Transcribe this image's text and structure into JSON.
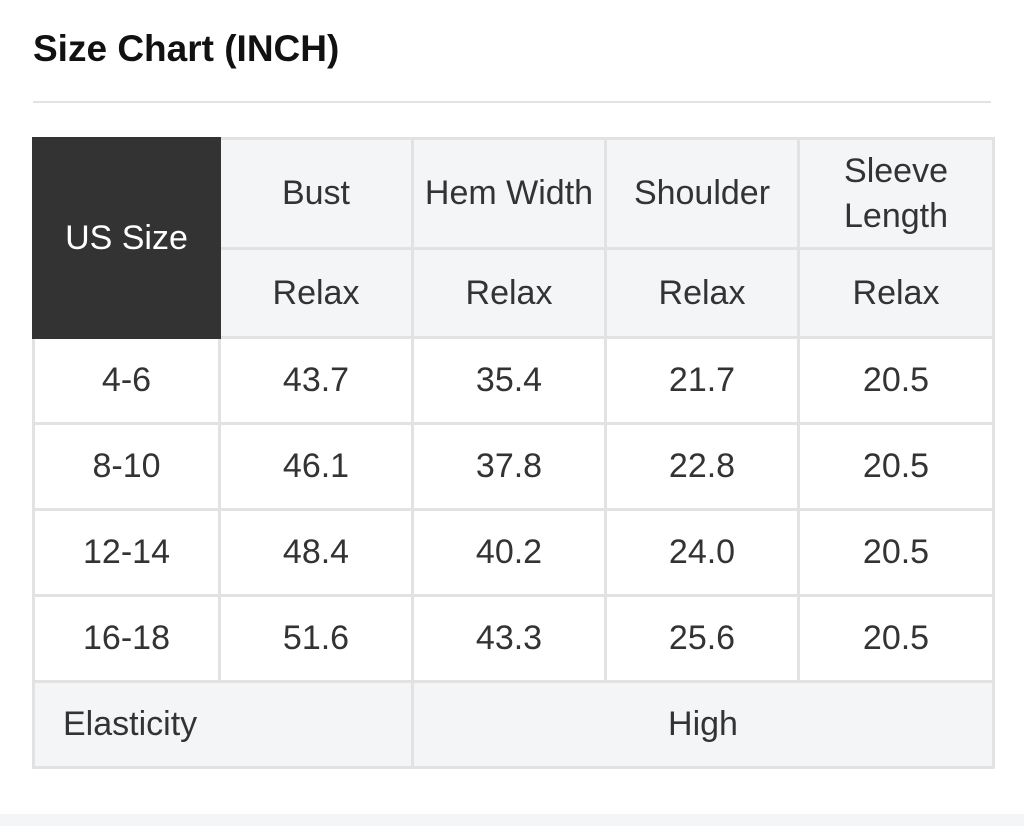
{
  "title": "Size Chart (INCH)",
  "table": {
    "size_header": "US Size",
    "columns": [
      {
        "name": "Bust",
        "fit": "Relax"
      },
      {
        "name": "Hem Width",
        "fit": "Relax"
      },
      {
        "name": "Shoulder",
        "fit": "Relax"
      },
      {
        "name": "Sleeve Length",
        "fit": "Relax"
      }
    ],
    "rows": [
      {
        "size": "4-6",
        "values": [
          "43.7",
          "35.4",
          "21.7",
          "20.5"
        ]
      },
      {
        "size": "8-10",
        "values": [
          "46.1",
          "37.8",
          "22.8",
          "20.5"
        ]
      },
      {
        "size": "12-14",
        "values": [
          "48.4",
          "40.2",
          "24.0",
          "20.5"
        ]
      },
      {
        "size": "16-18",
        "values": [
          "51.6",
          "43.3",
          "25.6",
          "20.5"
        ]
      }
    ],
    "elasticity_label": "Elasticity",
    "elasticity_value": "High"
  }
}
